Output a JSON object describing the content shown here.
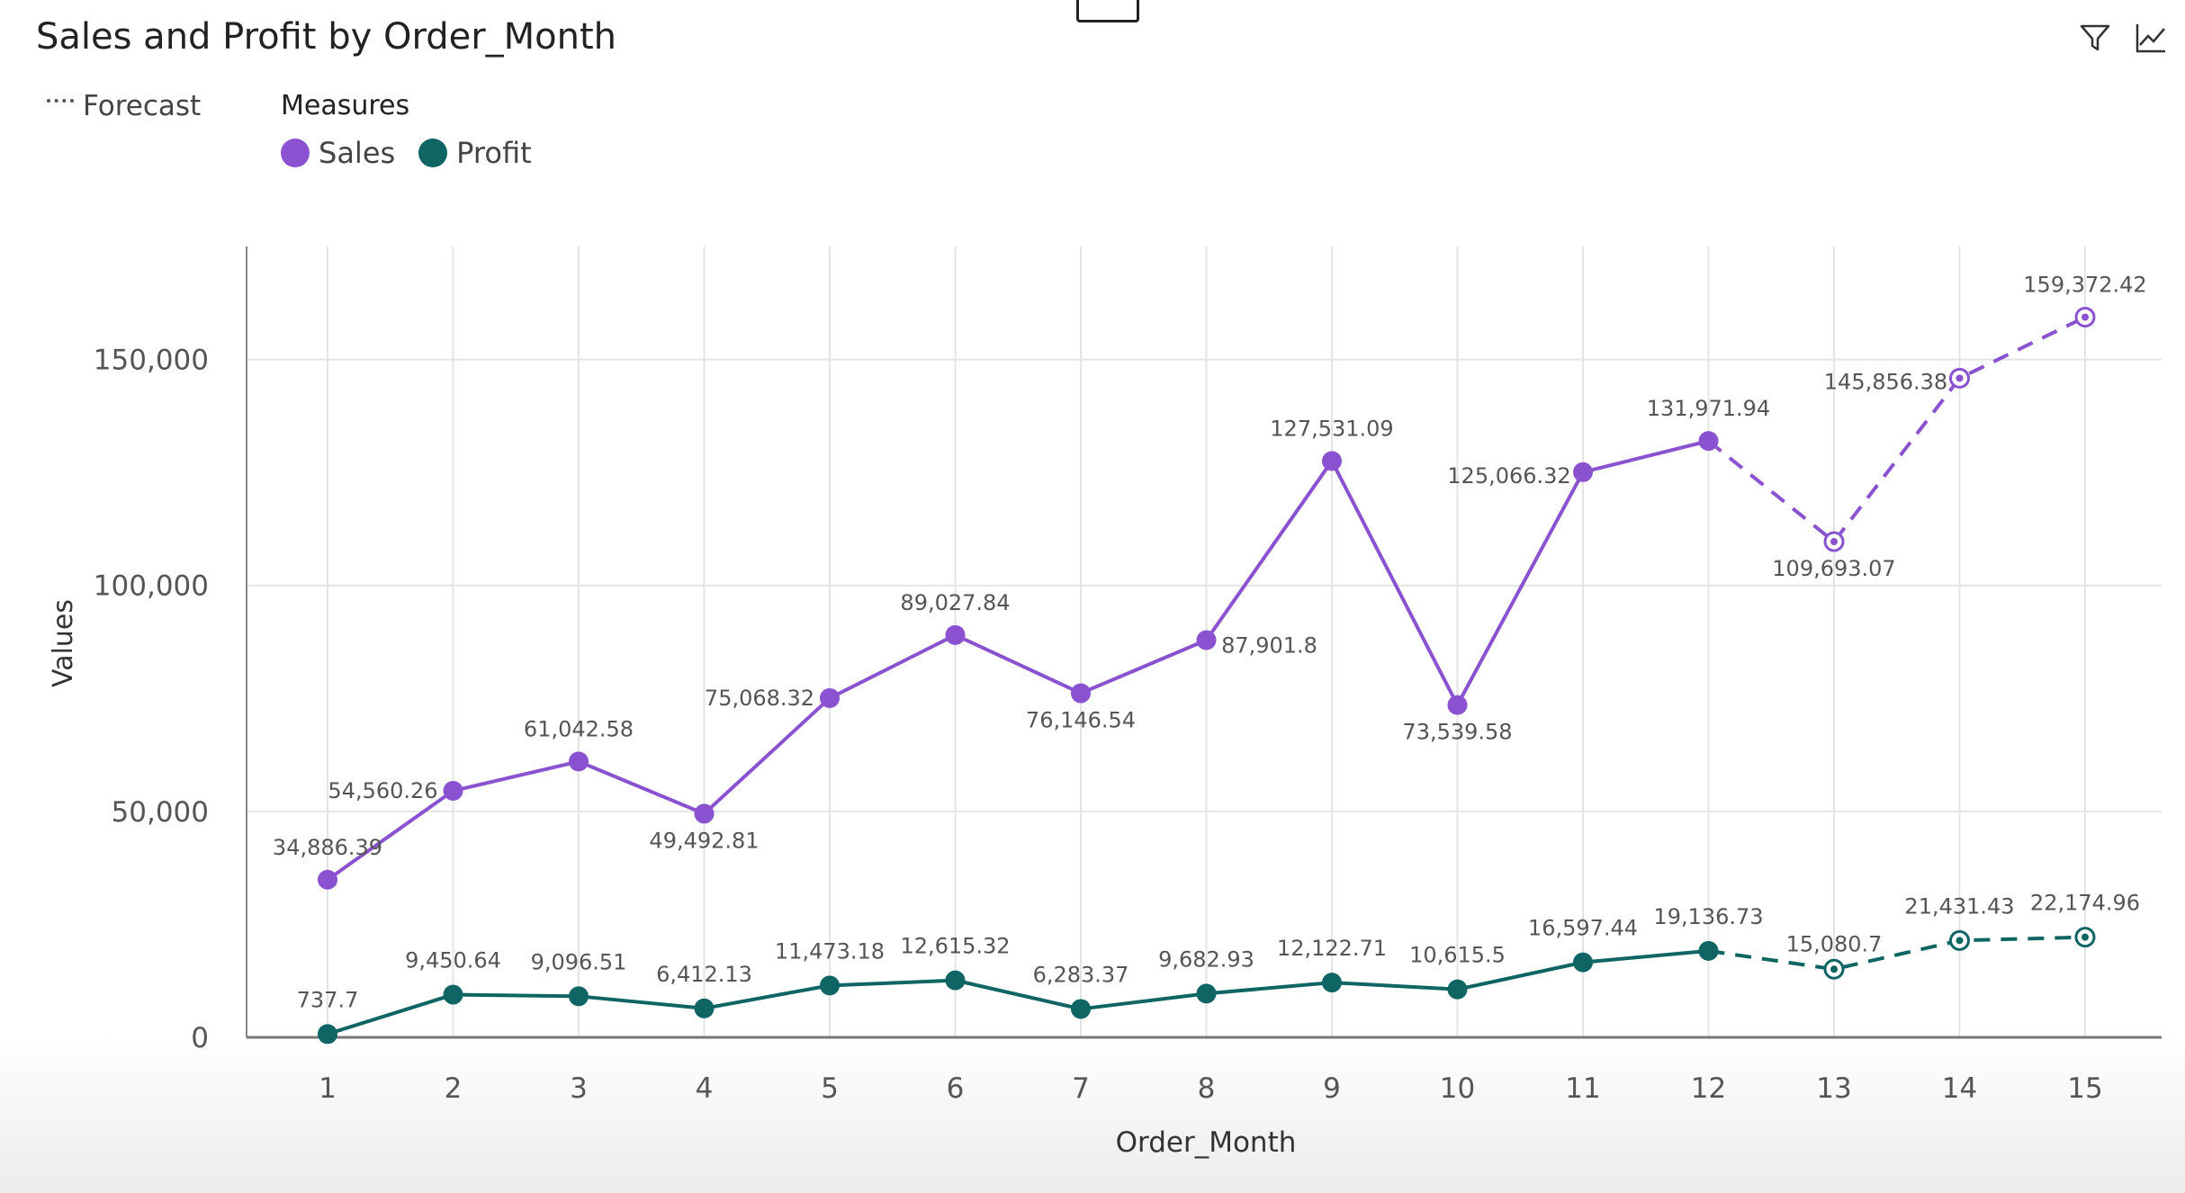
{
  "title": "Sales and Profit by Order_Month",
  "legend": {
    "forecast_label": "Forecast",
    "measures_title": "Measures",
    "items": [
      {
        "label": "Sales",
        "color": "#8a52d0"
      },
      {
        "label": "Profit",
        "color": "#0f6464"
      }
    ]
  },
  "toolbar": {
    "icons": [
      "filter-icon",
      "trend-chart-icon"
    ]
  },
  "chart_data": {
    "type": "line",
    "title": "Sales and Profit by Order_Month",
    "xlabel": "Order_Month",
    "ylabel": "Values",
    "x": [
      1,
      2,
      3,
      4,
      5,
      6,
      7,
      8,
      9,
      10,
      11,
      12,
      13,
      14,
      15
    ],
    "ylim": [
      0,
      175000
    ],
    "yticks": [
      0,
      50000,
      100000,
      150000
    ],
    "ytick_labels": [
      "0",
      "50,000",
      "100,000",
      "150,000"
    ],
    "forecast_start_x": 13,
    "grid": true,
    "legend_position": "top-left",
    "series": [
      {
        "name": "Sales",
        "color": "#8a52d0",
        "values": [
          34886.39,
          54560.26,
          61042.58,
          49492.81,
          75068.32,
          89027.84,
          76146.54,
          87901.8,
          127531.09,
          73539.58,
          125066.32,
          131971.94,
          109693.07,
          145856.38,
          159372.42
        ],
        "labels": [
          "34,886.39",
          "54,560.26",
          "61,042.58",
          "49,492.81",
          "75,068.32",
          "89,027.84",
          "76,146.54",
          "87,901.8",
          "127,531.09",
          "73,539.58",
          "125,066.32",
          "131,971.94",
          "109,693.07",
          "145,856.38",
          "159,372.42"
        ]
      },
      {
        "name": "Profit",
        "color": "#0f6464",
        "values": [
          737.7,
          9450.64,
          9096.51,
          6412.13,
          11473.18,
          12615.32,
          6283.37,
          9682.93,
          12122.71,
          10615.5,
          16597.44,
          19136.73,
          15080.7,
          21431.43,
          22174.96
        ],
        "labels": [
          "737.7",
          "9,450.64",
          "9,096.51",
          "6,412.13",
          "11,473.18",
          "12,615.32",
          "6,283.37",
          "9,682.93",
          "12,122.71",
          "10,615.5",
          "16,597.44",
          "19,136.73",
          "15,080.7",
          "21,431.43",
          "22,174.96"
        ]
      }
    ]
  }
}
